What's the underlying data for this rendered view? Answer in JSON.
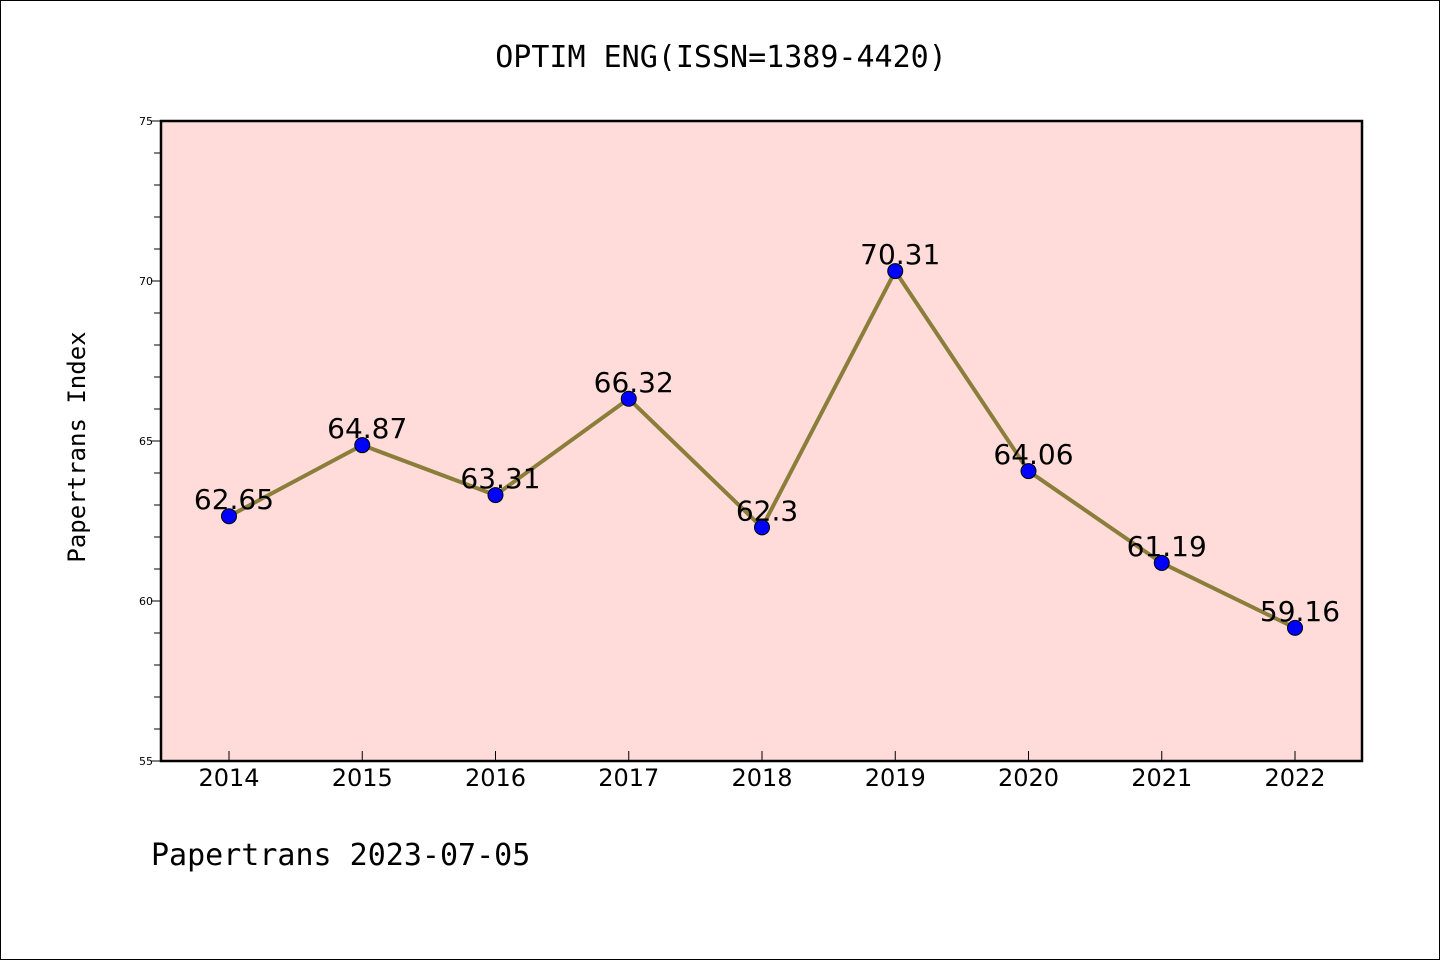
{
  "chart_data": {
    "type": "line",
    "title": "OPTIM ENG(ISSN=1389-4420)",
    "ylabel": "Papertrans Index",
    "xlabel": "",
    "categories": [
      "2014",
      "2015",
      "2016",
      "2017",
      "2018",
      "2019",
      "2020",
      "2021",
      "2022"
    ],
    "series": [
      {
        "values": [
          62.65,
          64.87,
          63.31,
          66.32,
          62.3,
          70.31,
          64.06,
          61.19,
          59.16
        ],
        "labels": [
          "62.65",
          "64.87",
          "63.31",
          "66.32",
          "62.3",
          "70.31",
          "64.06",
          "61.19",
          "59.16"
        ],
        "line_color": "#8B7D3A",
        "marker_color": "#0000FF"
      }
    ],
    "ylim": [
      55,
      75
    ],
    "yticks": [
      55,
      60,
      65,
      70,
      75
    ],
    "ytick_labels": [
      "55",
      "60",
      "65",
      "70",
      "75"
    ],
    "plot_background": "#FFDCDA",
    "grid": false,
    "footer": "Papertrans 2023-07-05"
  }
}
